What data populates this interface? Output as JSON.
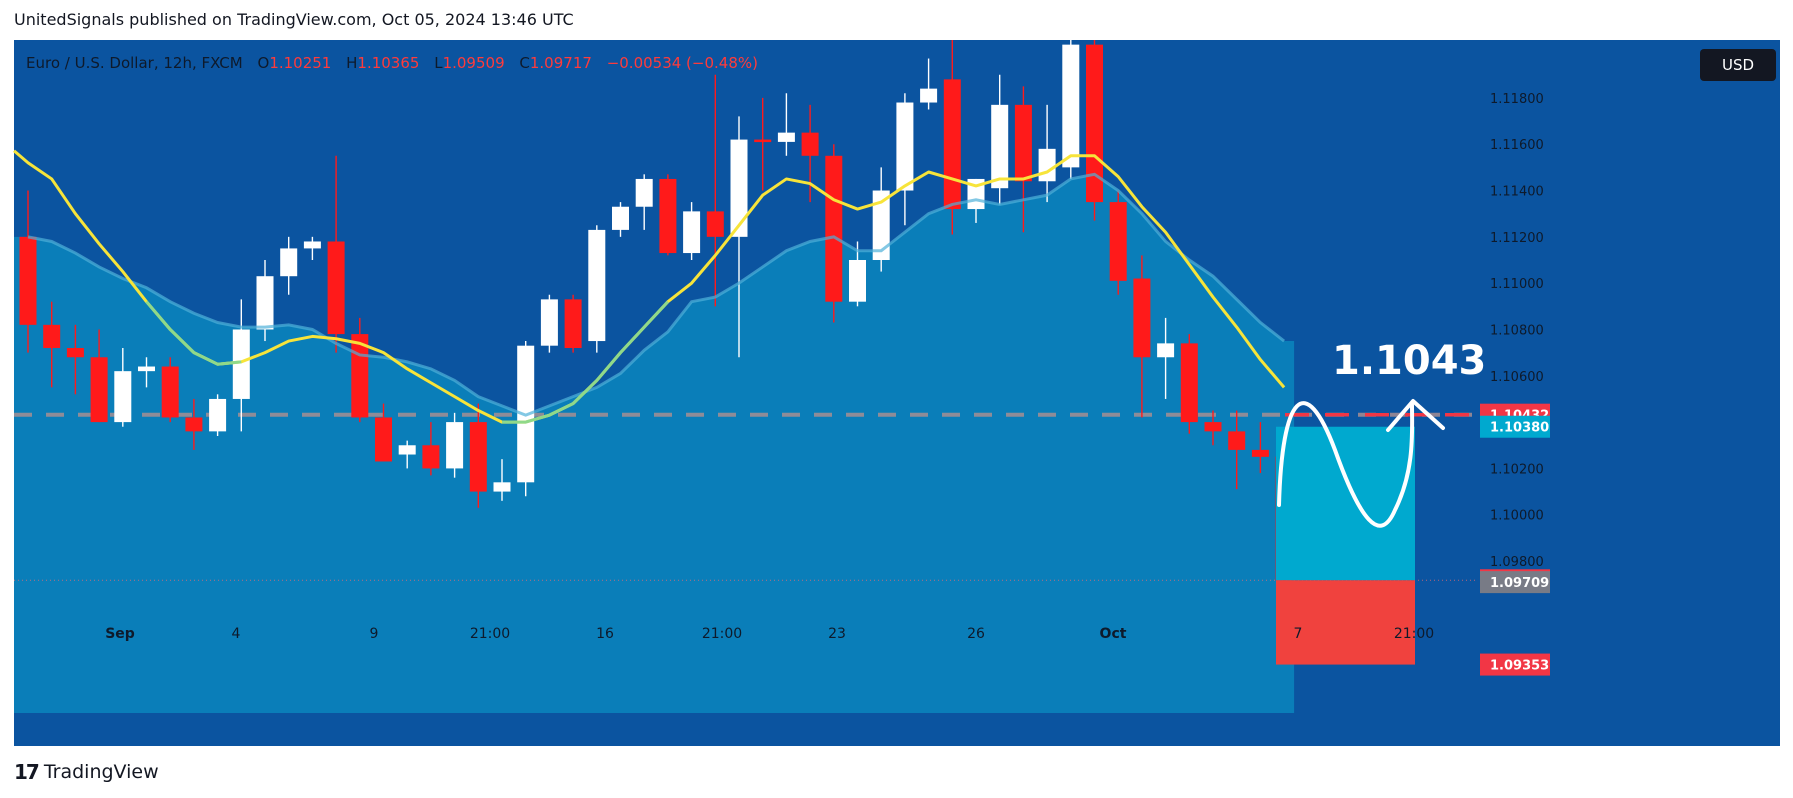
{
  "caption": "UnitedSignals published on TradingView.com, Oct 05, 2024 13:46 UTC",
  "legend": {
    "symbol": "Euro / U.S. Dollar, 12h, FXCM",
    "o_key": "O",
    "o_val": "1.10251",
    "h_key": "H",
    "h_val": "1.10365",
    "l_key": "L",
    "l_val": "1.09509",
    "c_key": "C",
    "c_val": "1.09717",
    "change": "−0.00534 (−0.48%)"
  },
  "currency_button": "USD",
  "footer_brand": "TradingView",
  "footer_mark": "17",
  "annotation_target": "1.1043",
  "colors": {
    "background": "#0b54a0",
    "area_fill": "#0a86bd",
    "ma_fast": "#f7e43a",
    "ma_slow_line": "#8fd98a",
    "bull": "#ffffff",
    "bear": "#ff1a1a",
    "profit_zone": "#00a9cf",
    "loss_zone": "#f0423e"
  },
  "chart_data": {
    "type": "candlestick",
    "symbol": "EURUSD",
    "timeframe": "12h",
    "ylim": [
      1.092,
      1.1205
    ],
    "y_ticks": [
      "1.11800",
      "1.11600",
      "1.11400",
      "1.11200",
      "1.11000",
      "1.10800",
      "1.10600",
      "1.10200",
      "1.10000",
      "1.09800"
    ],
    "x_tick_labels": [
      "Sep",
      "4",
      "9",
      "21:00",
      "16",
      "21:00",
      "23",
      "26",
      "Oct",
      "7",
      "21:00"
    ],
    "price_labels": [
      {
        "value": "1.10432",
        "color": "#f23645"
      },
      {
        "value": "1.10380",
        "color": "#00a9cf"
      },
      {
        "value": "1.09717",
        "color": "#f23645"
      },
      {
        "value": "1.09709",
        "color": "#787b86"
      },
      {
        "value": "1.09353",
        "color": "#f23645"
      }
    ],
    "candles": [
      {
        "o": 1.112,
        "h": 1.114,
        "l": 1.107,
        "c": 1.1082
      },
      {
        "o": 1.1082,
        "h": 1.1092,
        "l": 1.1055,
        "c": 1.1072
      },
      {
        "o": 1.1072,
        "h": 1.1082,
        "l": 1.1052,
        "c": 1.1068
      },
      {
        "o": 1.1068,
        "h": 1.108,
        "l": 1.104,
        "c": 1.104
      },
      {
        "o": 1.104,
        "h": 1.1072,
        "l": 1.1038,
        "c": 1.1062
      },
      {
        "o": 1.1062,
        "h": 1.1068,
        "l": 1.1055,
        "c": 1.1064
      },
      {
        "o": 1.1064,
        "h": 1.1068,
        "l": 1.104,
        "c": 1.1042
      },
      {
        "o": 1.1042,
        "h": 1.105,
        "l": 1.1028,
        "c": 1.1036
      },
      {
        "o": 1.1036,
        "h": 1.1052,
        "l": 1.1034,
        "c": 1.105
      },
      {
        "o": 1.105,
        "h": 1.1093,
        "l": 1.1036,
        "c": 1.108
      },
      {
        "o": 1.108,
        "h": 1.111,
        "l": 1.1075,
        "c": 1.1103
      },
      {
        "o": 1.1103,
        "h": 1.112,
        "l": 1.1095,
        "c": 1.1115
      },
      {
        "o": 1.1115,
        "h": 1.112,
        "l": 1.111,
        "c": 1.1118
      },
      {
        "o": 1.1118,
        "h": 1.1155,
        "l": 1.107,
        "c": 1.1078
      },
      {
        "o": 1.1078,
        "h": 1.1085,
        "l": 1.104,
        "c": 1.1042
      },
      {
        "o": 1.1042,
        "h": 1.1048,
        "l": 1.1025,
        "c": 1.1023
      },
      {
        "o": 1.1026,
        "h": 1.1032,
        "l": 1.102,
        "c": 1.103
      },
      {
        "o": 1.103,
        "h": 1.104,
        "l": 1.1017,
        "c": 1.102
      },
      {
        "o": 1.102,
        "h": 1.1044,
        "l": 1.1016,
        "c": 1.104
      },
      {
        "o": 1.104,
        "h": 1.1048,
        "l": 1.1003,
        "c": 1.101
      },
      {
        "o": 1.101,
        "h": 1.1024,
        "l": 1.1006,
        "c": 1.1014
      },
      {
        "o": 1.1014,
        "h": 1.1075,
        "l": 1.1008,
        "c": 1.1073
      },
      {
        "o": 1.1073,
        "h": 1.1095,
        "l": 1.107,
        "c": 1.1093
      },
      {
        "o": 1.1093,
        "h": 1.1095,
        "l": 1.107,
        "c": 1.1072
      },
      {
        "o": 1.1075,
        "h": 1.1125,
        "l": 1.107,
        "c": 1.1123
      },
      {
        "o": 1.1123,
        "h": 1.1135,
        "l": 1.112,
        "c": 1.1133
      },
      {
        "o": 1.1133,
        "h": 1.1147,
        "l": 1.1123,
        "c": 1.1145
      },
      {
        "o": 1.1145,
        "h": 1.1147,
        "l": 1.1112,
        "c": 1.1113
      },
      {
        "o": 1.1113,
        "h": 1.1135,
        "l": 1.111,
        "c": 1.1131
      },
      {
        "o": 1.1131,
        "h": 1.119,
        "l": 1.109,
        "c": 1.112
      },
      {
        "o": 1.112,
        "h": 1.1172,
        "l": 1.1068,
        "c": 1.1162
      },
      {
        "o": 1.1162,
        "h": 1.118,
        "l": 1.114,
        "c": 1.1161
      },
      {
        "o": 1.1161,
        "h": 1.1182,
        "l": 1.1155,
        "c": 1.1165
      },
      {
        "o": 1.1165,
        "h": 1.1177,
        "l": 1.1135,
        "c": 1.1155
      },
      {
        "o": 1.1155,
        "h": 1.116,
        "l": 1.1083,
        "c": 1.1092
      },
      {
        "o": 1.1092,
        "h": 1.1118,
        "l": 1.109,
        "c": 1.111
      },
      {
        "o": 1.111,
        "h": 1.115,
        "l": 1.1105,
        "c": 1.114
      },
      {
        "o": 1.114,
        "h": 1.1182,
        "l": 1.1125,
        "c": 1.1178
      },
      {
        "o": 1.1178,
        "h": 1.1197,
        "l": 1.1175,
        "c": 1.1184
      },
      {
        "o": 1.1188,
        "h": 1.1205,
        "l": 1.1121,
        "c": 1.1132
      },
      {
        "o": 1.1132,
        "h": 1.1145,
        "l": 1.1126,
        "c": 1.1145
      },
      {
        "o": 1.1141,
        "h": 1.119,
        "l": 1.1134,
        "c": 1.1177
      },
      {
        "o": 1.1177,
        "h": 1.1185,
        "l": 1.1122,
        "c": 1.1144
      },
      {
        "o": 1.1144,
        "h": 1.1177,
        "l": 1.1135,
        "c": 1.1158
      },
      {
        "o": 1.115,
        "h": 1.1205,
        "l": 1.1145,
        "c": 1.1203
      },
      {
        "o": 1.1203,
        "h": 1.1205,
        "l": 1.1127,
        "c": 1.1135
      },
      {
        "o": 1.1135,
        "h": 1.114,
        "l": 1.1095,
        "c": 1.1101
      },
      {
        "o": 1.1102,
        "h": 1.1112,
        "l": 1.1042,
        "c": 1.1068
      },
      {
        "o": 1.1068,
        "h": 1.1085,
        "l": 1.105,
        "c": 1.1074
      },
      {
        "o": 1.1074,
        "h": 1.1078,
        "l": 1.1035,
        "c": 1.104
      },
      {
        "o": 1.104,
        "h": 1.1045,
        "l": 1.103,
        "c": 1.1036
      },
      {
        "o": 1.1036,
        "h": 1.1045,
        "l": 1.1011,
        "c": 1.1028
      },
      {
        "o": 1.1028,
        "h": 1.104,
        "l": 1.1018,
        "c": 1.1025
      },
      {
        "o": 1.10251,
        "h": 1.10365,
        "l": 1.09509,
        "c": 1.09717
      }
    ],
    "ma_fast": [
      1.1152,
      1.1145,
      1.113,
      1.1117,
      1.1105,
      1.1092,
      1.108,
      1.107,
      1.1065,
      1.1066,
      1.107,
      1.1075,
      1.1077,
      1.1076,
      1.1074,
      1.107,
      1.1063,
      1.1057,
      1.1051,
      1.1045,
      1.104,
      1.104,
      1.1043,
      1.1048,
      1.1058,
      1.107,
      1.1081,
      1.1092,
      1.11,
      1.1112,
      1.1125,
      1.1138,
      1.1145,
      1.1143,
      1.1136,
      1.1132,
      1.1135,
      1.1142,
      1.1148,
      1.1145,
      1.1142,
      1.1145,
      1.1145,
      1.1148,
      1.1155,
      1.1155,
      1.1146,
      1.1133,
      1.1122,
      1.1108,
      1.1094,
      1.1081,
      1.1067,
      1.1055
    ],
    "ma_slow": [
      1.112,
      1.1118,
      1.1113,
      1.1107,
      1.1102,
      1.1098,
      1.1092,
      1.1087,
      1.1083,
      1.1081,
      1.1081,
      1.1082,
      1.108,
      1.1074,
      1.1069,
      1.1068,
      1.1066,
      1.1063,
      1.1058,
      1.1051,
      1.1047,
      1.1043,
      1.1047,
      1.1051,
      1.1055,
      1.1061,
      1.1071,
      1.1079,
      1.1092,
      1.1094,
      1.11,
      1.1107,
      1.1114,
      1.1118,
      1.112,
      1.1114,
      1.1114,
      1.1122,
      1.113,
      1.1134,
      1.1136,
      1.1134,
      1.1136,
      1.1138,
      1.1145,
      1.1147,
      1.114,
      1.113,
      1.1118,
      1.111,
      1.1103,
      1.1093,
      1.1083,
      1.1075
    ],
    "reference_level": 1.10432,
    "position": {
      "entry": 1.09717,
      "target": 1.1038,
      "stop": 1.09353
    }
  }
}
